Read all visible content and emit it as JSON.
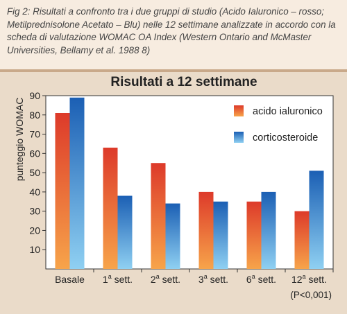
{
  "caption": "Fig 2:  Risultati a confronto  tra i due gruppi di studio (Acido Ialuronico – rosso; Metilprednisolone Acetato – Blu) nelle 12 settimane analizzate in accordo con la scheda di valutazione WOMAC OA Index (Western Ontario and McMaster Universities, Bellamy et al. 1988 8)",
  "colors": {
    "background": "#f7ece0",
    "panel": "#eadbc9",
    "plot_area": "#ffffff",
    "red_top": "#dd3a2a",
    "red_bottom": "#f7a44a",
    "blue_top": "#1b5fb4",
    "blue_bottom": "#8fd0f2"
  },
  "chart_data": {
    "type": "bar",
    "title": "Risultati a 12 settimane",
    "ylabel": "punteggio WOMAC",
    "xlabel": "",
    "ylim": [
      0,
      90
    ],
    "yticks": [
      10,
      20,
      30,
      40,
      50,
      60,
      70,
      80,
      90
    ],
    "categories": [
      {
        "base": "Basale",
        "sup": ""
      },
      {
        "base": "1",
        "sup": "a",
        "rest": " sett."
      },
      {
        "base": "2",
        "sup": "a",
        "rest": " sett."
      },
      {
        "base": "3",
        "sup": "a",
        "rest": " sett."
      },
      {
        "base": "6",
        "sup": "a",
        "rest": " sett."
      },
      {
        "base": "12",
        "sup": "a",
        "rest": " sett."
      }
    ],
    "series": [
      {
        "name": "acido ialuronico",
        "color": "red",
        "values": [
          81,
          63,
          55,
          40,
          35,
          30
        ]
      },
      {
        "name": "corticosteroide",
        "color": "blue",
        "values": [
          89,
          38,
          34,
          35,
          40,
          51
        ]
      }
    ],
    "legend_position": "top-right",
    "grid": false,
    "note": "(P<0,001)"
  }
}
